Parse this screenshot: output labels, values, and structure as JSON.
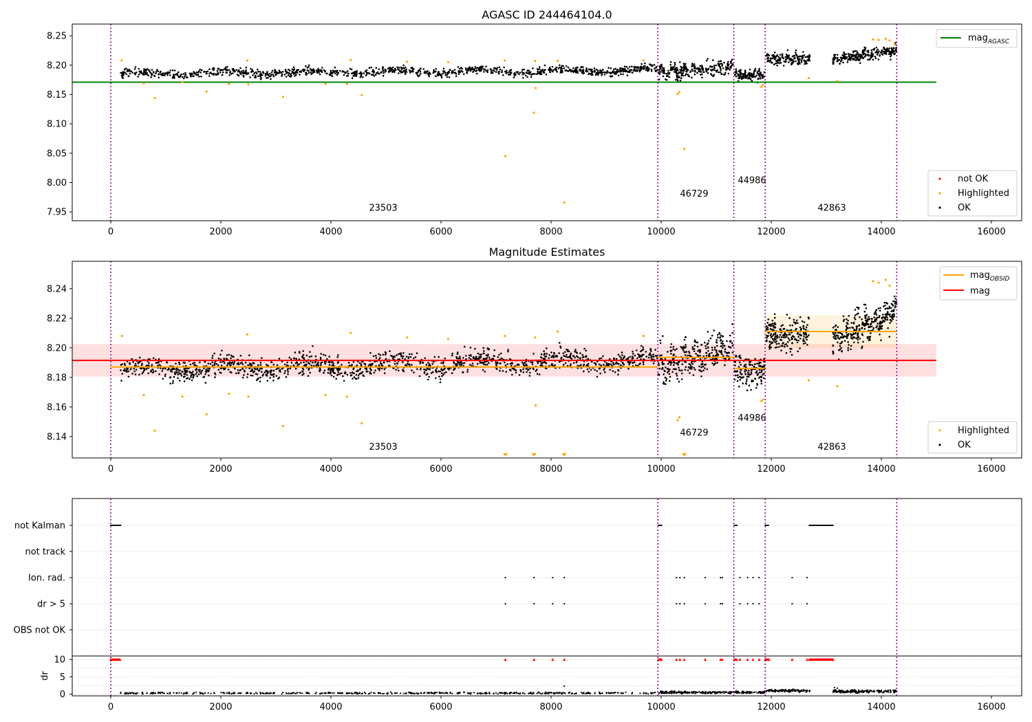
{
  "chart_data": [
    {
      "type": "scatter",
      "title": "AGASC ID 244464104.0",
      "xlim": [
        -700,
        16550
      ],
      "ylim": [
        7.935,
        8.27
      ],
      "x_ticks": [
        0,
        2000,
        4000,
        6000,
        8000,
        10000,
        12000,
        14000,
        16000
      ],
      "y_ticks": [
        7.95,
        8.0,
        8.05,
        8.1,
        8.15,
        8.2,
        8.25
      ],
      "vlines": [
        0,
        9940,
        11320,
        11890,
        14280
      ],
      "hlines": [
        {
          "name": "mag$_{AGASC}$",
          "y": 8.171,
          "x_range": [
            -700,
            15000
          ],
          "color": "#008000"
        }
      ],
      "annotations": [
        {
          "text": "23503",
          "x": 4950,
          "y": 7.952
        },
        {
          "text": "46729",
          "x": 10600,
          "y": 7.976
        },
        {
          "text": "44986",
          "x": 11650,
          "y": 7.999
        },
        {
          "text": "42863",
          "x": 13100,
          "y": 7.952
        }
      ],
      "segments": [
        {
          "x_range": [
            180,
            9930
          ],
          "y_start": 8.185,
          "y_end": 8.192,
          "spread": 0.008,
          "n": 1100
        },
        {
          "x_range": [
            9950,
            11310
          ],
          "y_start": 8.188,
          "y_end": 8.197,
          "spread": 0.013,
          "n": 260
        },
        {
          "x_range": [
            11330,
            11880
          ],
          "y_start": 8.182,
          "y_end": 8.184,
          "spread": 0.01,
          "n": 120
        },
        {
          "x_range": [
            11900,
            12700
          ],
          "y_start": 8.21,
          "y_end": 8.21,
          "spread": 0.01,
          "n": 170
        },
        {
          "x_range": [
            13120,
            14280
          ],
          "y_start": 8.21,
          "y_end": 8.225,
          "spread": 0.01,
          "n": 260
        }
      ],
      "series": [
        {
          "name": "not OK",
          "color": "#ff0000",
          "points": []
        },
        {
          "name": "Highlighted",
          "color": "#ffa500",
          "points": [
            [
              800,
              8.144
            ],
            [
              1740,
              8.155
            ],
            [
              3130,
              8.146
            ],
            [
              4560,
              8.149
            ],
            [
              7170,
              8.045
            ],
            [
              7690,
              8.119
            ],
            [
              7720,
              8.161
            ],
            [
              8240,
              7.966
            ],
            [
              10300,
              8.151
            ],
            [
              10330,
              8.154
            ],
            [
              10420,
              8.057
            ],
            [
              13200,
              8.173
            ],
            [
              11820,
              8.163
            ],
            [
              11850,
              8.166
            ],
            [
              200,
              8.208
            ],
            [
              2480,
              8.208
            ],
            [
              4360,
              8.209
            ],
            [
              5380,
              8.206
            ],
            [
              6130,
              8.205
            ],
            [
              7160,
              8.208
            ],
            [
              7710,
              8.207
            ],
            [
              8120,
              8.207
            ],
            [
              9680,
              8.208
            ],
            [
              12680,
              8.178
            ],
            [
              13850,
              8.244
            ],
            [
              13950,
              8.243
            ],
            [
              14080,
              8.245
            ],
            [
              14150,
              8.242
            ],
            [
              14240,
              8.236
            ],
            [
              600,
              8.169
            ],
            [
              1300,
              8.171
            ],
            [
              2150,
              8.168
            ],
            [
              2500,
              8.167
            ],
            [
              3900,
              8.168
            ],
            [
              4290,
              8.168
            ]
          ]
        },
        {
          "name": "OK",
          "color": "#000000",
          "points": []
        }
      ],
      "legend_top": [
        "mag$_{AGASC}$"
      ],
      "legend_bottom": [
        "not OK",
        "Highlighted",
        "OK"
      ]
    },
    {
      "type": "scatter",
      "title": "Magnitude Estimates",
      "xlim": [
        -700,
        16550
      ],
      "ylim": [
        8.1255,
        8.2585
      ],
      "x_ticks": [
        0,
        2000,
        4000,
        6000,
        8000,
        10000,
        12000,
        14000,
        16000
      ],
      "y_ticks": [
        8.14,
        8.16,
        8.18,
        8.2,
        8.22,
        8.24
      ],
      "vlines": [
        0,
        9940,
        11320,
        11890,
        14280
      ],
      "hlines": [
        {
          "name": "mag",
          "y": 8.1915,
          "x_range": [
            -700,
            15000
          ],
          "color": "#ff0000",
          "band": [
            8.1805,
            8.2025
          ]
        },
        {
          "name": "mag$_{OBSID}$",
          "y": 8.187,
          "x_range": [
            0,
            9940
          ],
          "color": "#ffa500"
        },
        {
          "name": "mag$_{OBSID}$",
          "y": 8.1935,
          "x_range": [
            9940,
            11320
          ],
          "color": "#ffa500"
        },
        {
          "name": "mag$_{OBSID}$",
          "y": 8.186,
          "x_range": [
            11320,
            11890
          ],
          "color": "#ffa500"
        },
        {
          "name": "mag$_{OBSID}$",
          "y": 8.211,
          "x_range": [
            11890,
            14280
          ],
          "color": "#ffa500",
          "band": [
            8.2,
            8.222
          ]
        }
      ],
      "annotations": [
        {
          "text": "23503",
          "x": 4950,
          "y": 8.131
        },
        {
          "text": "46729",
          "x": 10600,
          "y": 8.1405
        },
        {
          "text": "44986",
          "x": 11650,
          "y": 8.1505
        },
        {
          "text": "42863",
          "x": 13100,
          "y": 8.131
        }
      ],
      "segments": [
        {
          "x_range": [
            180,
            9930
          ],
          "y_start": 8.185,
          "y_end": 8.192,
          "spread": 0.008,
          "n": 1400
        },
        {
          "x_range": [
            9950,
            11310
          ],
          "y_start": 8.188,
          "y_end": 8.2,
          "spread": 0.013,
          "n": 320
        },
        {
          "x_range": [
            11330,
            11880
          ],
          "y_start": 8.183,
          "y_end": 8.185,
          "spread": 0.011,
          "n": 140
        },
        {
          "x_range": [
            11900,
            12700
          ],
          "y_start": 8.208,
          "y_end": 8.21,
          "spread": 0.012,
          "n": 210
        },
        {
          "x_range": [
            13120,
            14280
          ],
          "y_start": 8.205,
          "y_end": 8.225,
          "spread": 0.012,
          "n": 320
        }
      ],
      "series": [
        {
          "name": "Highlighted",
          "color": "#ffa500",
          "points": [
            [
              800,
              8.144
            ],
            [
              1740,
              8.155
            ],
            [
              3130,
              8.147
            ],
            [
              4560,
              8.149
            ],
            [
              7720,
              8.161
            ],
            [
              10300,
              8.151
            ],
            [
              10330,
              8.153
            ],
            [
              13200,
              8.174
            ],
            [
              12680,
              8.178
            ],
            [
              200,
              8.208
            ],
            [
              2480,
              8.209
            ],
            [
              4360,
              8.21
            ],
            [
              5380,
              8.207
            ],
            [
              6130,
              8.206
            ],
            [
              7160,
              8.208
            ],
            [
              7710,
              8.207
            ],
            [
              8120,
              8.211
            ],
            [
              9680,
              8.208
            ],
            [
              13850,
              8.245
            ],
            [
              13950,
              8.244
            ],
            [
              14080,
              8.246
            ],
            [
              14150,
              8.242
            ],
            [
              600,
              8.168
            ],
            [
              1300,
              8.167
            ],
            [
              2150,
              8.169
            ],
            [
              2500,
              8.167
            ],
            [
              3900,
              8.168
            ],
            [
              4290,
              8.167
            ],
            [
              11820,
              8.164
            ],
            [
              11850,
              8.165
            ]
          ]
        },
        {
          "name": "OK",
          "color": "#000000",
          "points": []
        }
      ],
      "offscale_markers": [
        7170,
        7690,
        8240,
        10420
      ],
      "legend_top": [
        "mag$_{OBSID}$",
        "mag"
      ],
      "legend_bottom": [
        "Highlighted",
        "OK"
      ]
    },
    {
      "type": "scatter",
      "xlim": [
        -700,
        16550
      ],
      "x_ticks": [
        0,
        2000,
        4000,
        6000,
        8000,
        10000,
        12000,
        14000,
        16000
      ],
      "vlines": [
        0,
        9940,
        11320,
        11890,
        14280
      ],
      "category_rows": [
        "not Kalman",
        "not track",
        "Ion. rad.",
        "dr > 5",
        "OBS not OK"
      ],
      "flags": {
        "not Kalman": [
          [
            0,
            180
          ],
          [
            9950,
            10010
          ],
          [
            11330,
            11380
          ],
          [
            11890,
            11960
          ],
          [
            12690,
            13130
          ]
        ],
        "not track": [],
        "Ion. rad.": [
          7170,
          7690,
          8030,
          8240,
          10280,
          10340,
          10420,
          10800,
          11080,
          11110,
          11430,
          11570,
          11670,
          11780,
          12380,
          12650
        ],
        "dr > 5": [
          7170,
          7690,
          8030,
          8240,
          10280,
          10340,
          10420,
          10800,
          11080,
          11110,
          11430,
          11570,
          11670,
          11780,
          12380,
          12650
        ],
        "OBS not OK": []
      },
      "dr": {
        "ylabel": "dr",
        "ylim": [
          -0.5,
          11
        ],
        "y_ticks": [
          0,
          5,
          10
        ],
        "segments": [
          {
            "x_range": [
              180,
              9930
            ],
            "mean": 0.3,
            "spread": 0.25,
            "n": 500
          },
          {
            "x_range": [
              9950,
              11880
            ],
            "mean": 0.5,
            "spread": 0.35,
            "n": 260
          },
          {
            "x_range": [
              11900,
              12700
            ],
            "mean": 1.0,
            "spread": 0.4,
            "n": 110
          },
          {
            "x_range": [
              13120,
              14280
            ],
            "mean": 0.8,
            "spread": 0.45,
            "n": 170
          }
        ],
        "outliers": [
          [
            8240,
            2.3
          ],
          [
            13150,
            1.9
          ],
          [
            13200,
            1.7
          ]
        ],
        "clipped_at": 10,
        "clipped_x": [
          [
            0,
            180
          ],
          [
            9950,
            10010
          ],
          [
            11330,
            11380
          ],
          [
            11890,
            11960
          ],
          [
            12690,
            13130
          ]
        ],
        "clipped_points": [
          7170,
          7690,
          8030,
          8240,
          10280,
          10340,
          10420,
          10800,
          11080,
          11110,
          11430,
          11570,
          11670,
          11780,
          12380,
          12650
        ]
      }
    }
  ]
}
